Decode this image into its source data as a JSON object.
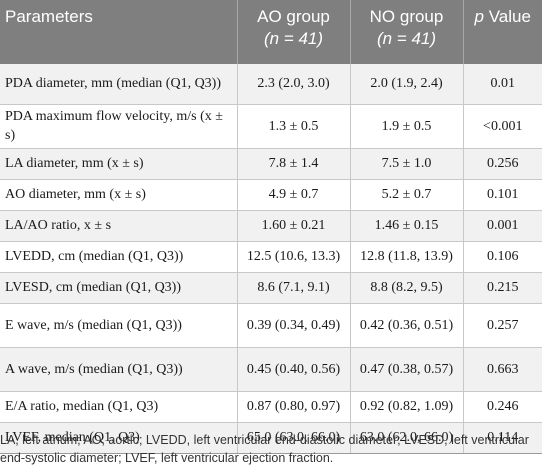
{
  "table": {
    "headers": {
      "parameters": "Parameters",
      "ao_group": "AO group",
      "ao_n": "(n = 41)",
      "no_group": "NO group",
      "no_n": "(n = 41)",
      "p_label": "p",
      "value_label": " Value"
    },
    "rows": [
      {
        "parameter": "PDA diameter, mm (median (Q1, Q3))",
        "ao": "2.3 (2.0, 3.0)",
        "no": "2.0 (1.9, 2.4)",
        "p": "0.01"
      },
      {
        "parameter": "PDA maximum flow velocity, m/s (x ± s)",
        "ao": "1.3 ± 0.5",
        "no": "1.9 ± 0.5",
        "p": "<0.001"
      },
      {
        "parameter": "LA diameter, mm (x ± s)",
        "ao": "7.8 ± 1.4",
        "no": "7.5 ± 1.0",
        "p": "0.256"
      },
      {
        "parameter": "AO diameter, mm (x ± s)",
        "ao": "4.9 ± 0.7",
        "no": "5.2 ± 0.7",
        "p": "0.101"
      },
      {
        "parameter": "LA/AO ratio, x ± s",
        "ao": "1.60 ± 0.21",
        "no": "1.46 ± 0.15",
        "p": "0.001"
      },
      {
        "parameter": "LVEDD, cm (median (Q1, Q3))",
        "ao": "12.5 (10.6, 13.3)",
        "no": "12.8 (11.8, 13.9)",
        "p": "0.106"
      },
      {
        "parameter": "LVESD, cm (median (Q1, Q3))",
        "ao": "8.6 (7.1, 9.1)",
        "no": "8.8 (8.2, 9.5)",
        "p": "0.215"
      },
      {
        "parameter": "E wave, m/s (median (Q1, Q3))",
        "ao": "0.39 (0.34, 0.49)",
        "no": "0.42 (0.36, 0.51)",
        "p": "0.257"
      },
      {
        "parameter": "A wave, m/s (median (Q1, Q3))",
        "ao": "0.45 (0.40, 0.56)",
        "no": "0.47 (0.38, 0.57)",
        "p": "0.663"
      },
      {
        "parameter": "E/A ratio, median (Q1, Q3)",
        "ao": "0.87 (0.80, 0.97)",
        "no": "0.92 (0.82, 1.09)",
        "p": "0.246"
      },
      {
        "parameter": "LVEF, median (Q1, Q3)",
        "ao": "65.0 (63.0, 66.0)",
        "no": "63.0 (62.0, 66.0)",
        "p": "0.114"
      }
    ]
  },
  "footnote": "LA, left atrium; AO, aortic; LVEDD, left ventricular end-diastolic diameter; LVESD, left ventricular end-systolic diameter; LVEF, left ventricular ejection fraction."
}
